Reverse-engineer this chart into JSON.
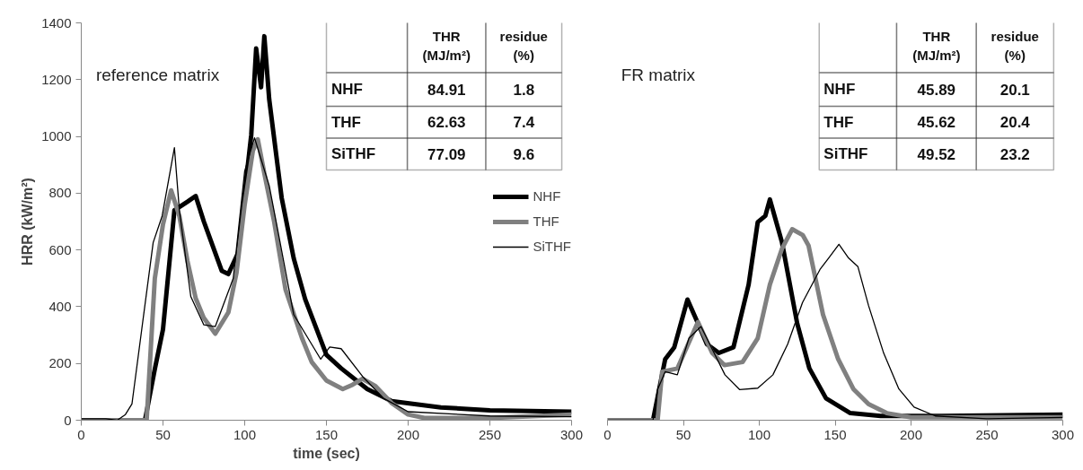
{
  "chart_data": [
    {
      "type": "line",
      "ylabel": "HRR (kW/m²)",
      "xlabel": "time (sec)",
      "xlim": [
        0,
        300
      ],
      "xticks": [
        0,
        50,
        100,
        150,
        200,
        250,
        300
      ],
      "ylim": [
        0,
        1400
      ],
      "yticks": [
        0,
        200,
        400,
        600,
        800,
        1000,
        1200,
        1400
      ],
      "grid": false,
      "legend": "right",
      "marker": "none",
      "line_style": "solid",
      "annotations": [
        "reference matrix",
        "THR (MJ/m²)",
        "residue (%)",
        "NHF",
        "84.91",
        "1.8",
        "THF",
        "62.63",
        "7.4",
        "SiTHF",
        "77.09",
        "9.6"
      ],
      "series": [
        {
          "name": "NHF",
          "color": "#000000",
          "x": [
            0,
            39,
            45,
            50,
            57,
            65,
            70,
            75,
            86,
            90,
            96,
            100,
            104,
            107,
            110,
            112,
            115,
            122.6,
            130,
            137,
            150,
            159,
            175,
            190,
            220,
            250,
            300
          ],
          "values": [
            0,
            0,
            180,
            320,
            740,
            770,
            790,
            700,
            526,
            515,
            590,
            800,
            1005,
            1310,
            1173,
            1353,
            1130,
            784,
            570,
            426,
            230,
            183,
            110,
            67,
            45,
            35,
            30
          ]
        },
        {
          "name": "THF",
          "color": "#808080",
          "x": [
            0,
            40,
            45,
            50,
            55,
            60,
            65,
            70,
            75,
            82,
            90,
            95,
            100,
            105,
            108,
            112,
            118,
            125,
            135,
            141,
            150,
            160,
            166,
            172,
            180,
            190,
            200,
            210,
            250,
            300
          ],
          "values": [
            0,
            0,
            500,
            690,
            810,
            720,
            560,
            430,
            360,
            305,
            380,
            520,
            760,
            950,
            990,
            870,
            700,
            460,
            290,
            205,
            140,
            110,
            125,
            146,
            120,
            60,
            20,
            8,
            8,
            20
          ]
        },
        {
          "name": "SiTHF",
          "color": "#000000",
          "x": [
            0,
            15,
            22,
            27,
            31,
            37,
            44,
            49.5,
            57,
            60,
            67,
            75,
            82,
            93,
            100,
            106,
            115,
            121,
            130,
            146.5,
            152,
            159,
            172,
            185,
            200,
            250,
            300
          ],
          "values": [
            5,
            5,
            0,
            20,
            57,
            320,
            626,
            720,
            960,
            741,
            436,
            336,
            330,
            500,
            878,
            995,
            826,
            646,
            372,
            215,
            258,
            252,
            155,
            77,
            30,
            15,
            12
          ]
        }
      ]
    },
    {
      "type": "line",
      "xlim": [
        0,
        300
      ],
      "xticks": [
        0,
        50,
        100,
        150,
        200,
        250,
        300
      ],
      "ylim": [
        0,
        1400
      ],
      "tick_labels": "x",
      "grid": false,
      "marker": "none",
      "line_style": "solid",
      "annotations": [
        "FR matrix",
        "THR (MJ/m²)",
        "residue (%)",
        "NHF",
        "45.89",
        "20.1",
        "THF",
        "45.62",
        "20.4",
        "SiTHF",
        "49.52",
        "23.2"
      ],
      "series": [
        {
          "color": "#000000",
          "x": [
            0,
            30,
            38,
            44,
            52.7,
            59.6,
            65.5,
            73.4,
            83,
            93,
            99,
            104,
            107,
            115,
            125,
            133,
            144,
            160,
            180,
            220,
            300
          ],
          "values": [
            0,
            0,
            215,
            257,
            425,
            341,
            268,
            237,
            257,
            478,
            698,
            720,
            778,
            626,
            341,
            183,
            77,
            25,
            15,
            15,
            20
          ]
        },
        {
          "color": "#808080",
          "x": [
            0,
            33,
            36,
            46,
            59.6,
            69,
            77,
            89,
            99,
            107,
            115,
            121.7,
            128.7,
            132.5,
            142,
            152,
            162,
            172,
            184,
            200,
            250,
            300
          ],
          "values": [
            0,
            0,
            171,
            182,
            346,
            237,
            194,
            205,
            289,
            478,
            605,
            673,
            652,
            615,
            372,
            215,
            110,
            57,
            25,
            10,
            10,
            10
          ]
        },
        {
          "color": "#000000",
          "x": [
            0,
            30,
            33,
            38,
            46,
            53.7,
            61.6,
            69.5,
            77.4,
            87,
            99,
            109,
            118.7,
            128.5,
            140,
            146,
            152.5,
            158.6,
            165,
            172,
            182,
            192,
            202,
            216,
            250,
            300
          ],
          "values": [
            0,
            0,
            108,
            171,
            160,
            289,
            330,
            245,
            160,
            108,
            113,
            160,
            268,
            415,
            531,
            573,
            620,
            573,
            541,
            404,
            236,
            110,
            46,
            15,
            5,
            10
          ]
        }
      ]
    }
  ]
}
